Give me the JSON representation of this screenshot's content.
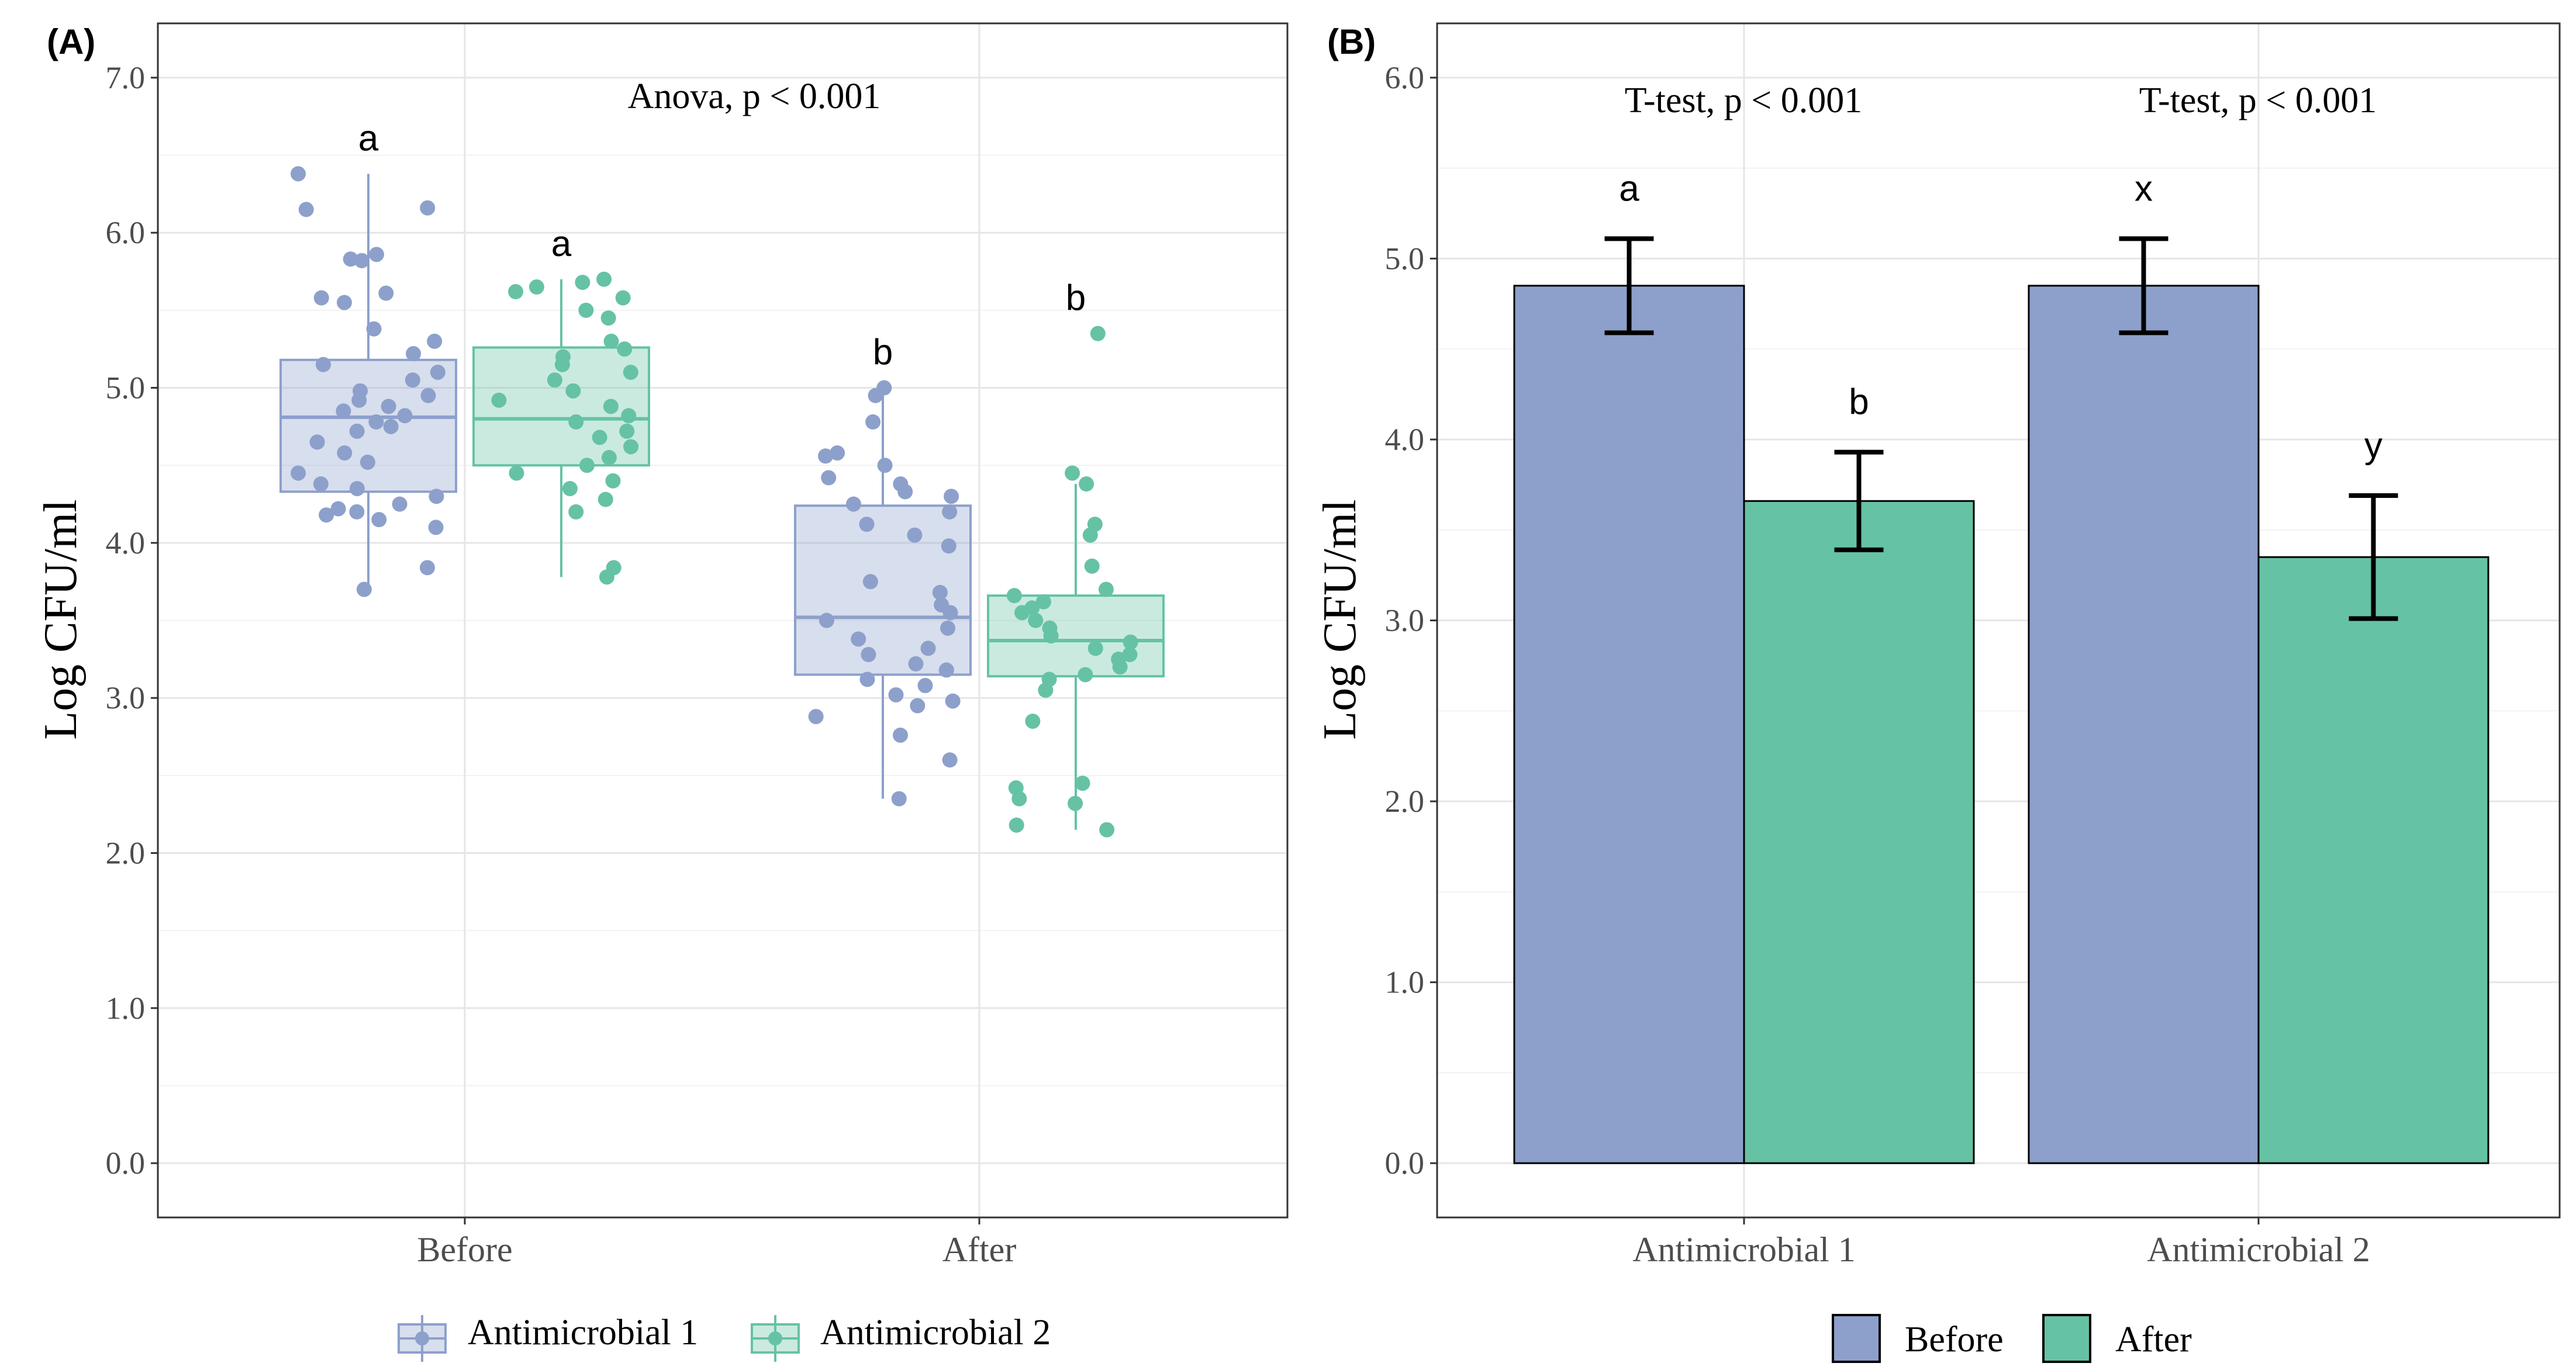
{
  "colors": {
    "before": "#8DA0CB",
    "after": "#66C2A5",
    "antimicrobial_1": "#8DA0CB",
    "antimicrobial_2": "#66C2A5"
  },
  "chart_data": [
    {
      "panel_label": "(A)",
      "type": "box",
      "title": "Anova, p < 0.001",
      "xlabel": "",
      "ylabel": "Log CFU/ml",
      "ylim": [
        -0.35,
        7.35
      ],
      "yticks": [
        "0.0",
        "1.0",
        "2.0",
        "3.0",
        "4.0",
        "5.0",
        "6.0",
        "7.0"
      ],
      "categories": [
        "Before",
        "After"
      ],
      "legend": {
        "position": "bottom",
        "entries": [
          "Antimicrobial 1",
          "Antimicrobial 2"
        ]
      },
      "series": [
        {
          "name": "Antimicrobial 1",
          "boxes": [
            {
              "q1": 4.33,
              "median": 4.81,
              "q3": 5.18,
              "min": 3.7,
              "max": 6.38,
              "letter": "a",
              "points": [
                6.38,
                6.16,
                6.15,
                5.86,
                5.83,
                5.82,
                5.61,
                5.58,
                5.55,
                5.38,
                5.3,
                5.22,
                5.15,
                5.1,
                5.05,
                4.98,
                4.95,
                4.92,
                4.88,
                4.85,
                4.82,
                4.78,
                4.75,
                4.72,
                4.65,
                4.58,
                4.52,
                4.45,
                4.38,
                4.35,
                4.3,
                4.25,
                4.22,
                4.2,
                4.18,
                4.15,
                4.1,
                3.84,
                3.7
              ]
            },
            {
              "q1": 3.15,
              "median": 3.52,
              "q3": 4.24,
              "min": 2.35,
              "max": 5.0,
              "letter": "b",
              "points": [
                5.0,
                4.95,
                4.78,
                4.58,
                4.56,
                4.5,
                4.42,
                4.38,
                4.33,
                4.3,
                4.25,
                4.2,
                4.12,
                4.05,
                3.98,
                3.75,
                3.68,
                3.6,
                3.55,
                3.5,
                3.45,
                3.38,
                3.32,
                3.28,
                3.22,
                3.18,
                3.12,
                3.08,
                3.02,
                2.98,
                2.95,
                2.88,
                2.76,
                2.6,
                2.35
              ]
            }
          ]
        },
        {
          "name": "Antimicrobial 2",
          "boxes": [
            {
              "q1": 4.5,
              "median": 4.8,
              "q3": 5.26,
              "min": 3.78,
              "max": 5.7,
              "letter": "a",
              "points": [
                5.7,
                5.68,
                5.65,
                5.62,
                5.58,
                5.5,
                5.45,
                5.3,
                5.25,
                5.2,
                5.15,
                5.1,
                5.05,
                4.98,
                4.92,
                4.88,
                4.82,
                4.78,
                4.72,
                4.68,
                4.62,
                4.55,
                4.5,
                4.45,
                4.4,
                4.35,
                4.28,
                4.2,
                3.84,
                3.78
              ]
            },
            {
              "q1": 3.14,
              "median": 3.37,
              "q3": 3.66,
              "min": 2.15,
              "max": 4.38,
              "letter": "b",
              "points": [
                5.35,
                4.45,
                4.38,
                4.12,
                4.05,
                3.85,
                3.7,
                3.66,
                3.62,
                3.58,
                3.55,
                3.5,
                3.45,
                3.4,
                3.36,
                3.32,
                3.28,
                3.25,
                3.2,
                3.15,
                3.12,
                3.05,
                2.85,
                2.45,
                2.42,
                2.35,
                2.32,
                2.18,
                2.15
              ]
            }
          ]
        }
      ]
    },
    {
      "panel_label": "(B)",
      "type": "bar",
      "xlabel": "",
      "ylabel": "Log CFU/ml",
      "ylim": [
        -0.3,
        6.3
      ],
      "yticks": [
        "0.0",
        "1.0",
        "2.0",
        "3.0",
        "4.0",
        "5.0",
        "6.0"
      ],
      "categories": [
        "Antimicrobial 1",
        "Antimicrobial 2"
      ],
      "annotations": [
        "T-test, p < 0.001",
        "T-test, p < 0.001"
      ],
      "legend": {
        "position": "bottom",
        "entries": [
          "Before",
          "After"
        ]
      },
      "series": [
        {
          "name": "Before",
          "values": [
            4.85,
            4.85
          ],
          "errors": [
            0.26,
            0.26
          ],
          "letters": [
            "a",
            "x"
          ]
        },
        {
          "name": "After",
          "values": [
            3.66,
            3.35
          ],
          "errors": [
            0.27,
            0.34
          ],
          "letters": [
            "b",
            "y"
          ]
        }
      ]
    }
  ]
}
